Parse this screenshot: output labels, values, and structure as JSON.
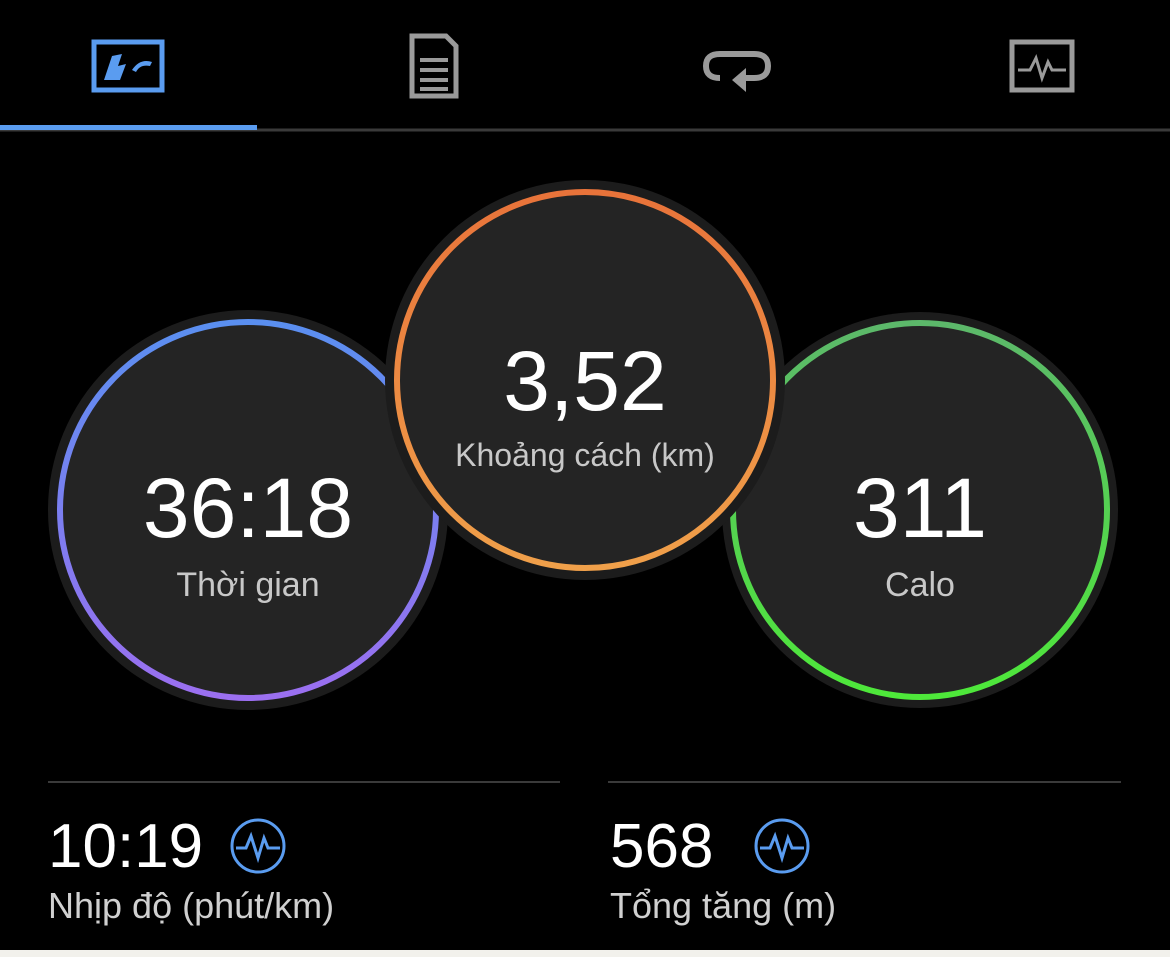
{
  "circles": [
    {
      "value": "36:18",
      "label": "Thời gian"
    },
    {
      "value": "3,52",
      "label": "Khoảng cách (km)"
    },
    {
      "value": "311",
      "label": "Calo"
    }
  ],
  "stats": [
    {
      "value": "10:19",
      "label": "Nhịp độ (phút/km)"
    },
    {
      "value": "568",
      "label": "Tổng tăng (m)"
    }
  ]
}
